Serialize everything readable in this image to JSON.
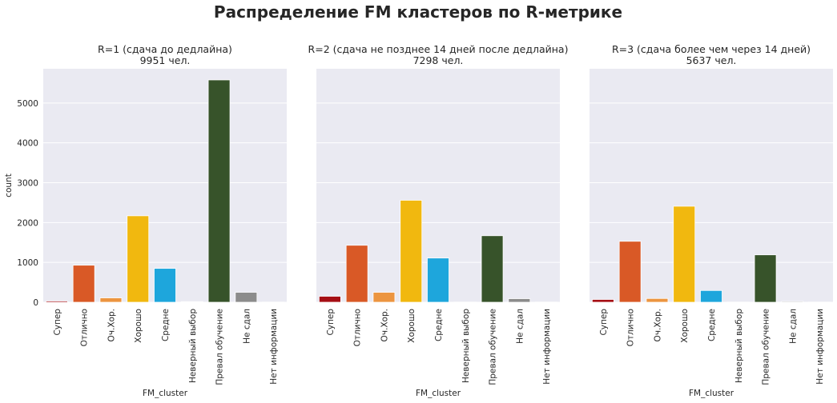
{
  "figure_title": "Распределение FM кластеров по R-метрике",
  "colors": {
    "plot_background": "#eaeaf2",
    "grid": "#ffffff",
    "Супер": "#a50f15",
    "Отлично": "#d95926",
    "Оч.Хор.": "#ec9540",
    "Хорошо": "#f1b80f",
    "Средне": "#1ea6dc",
    "Неверный выбор": "#a5a5a5",
    "Превал обучение": "#37532a",
    "Не сдал": "#8c8c8c",
    "Нет информации": "#b0b0b0"
  },
  "chart_data": [
    {
      "type": "bar",
      "title_line1": "R=1 (сдача до дедлайна)",
      "title_line2": "9951 чел.",
      "xlabel": "FM_cluster",
      "ylabel": "count",
      "categories": [
        "Супер",
        "Отлично",
        "Оч.Хор.",
        "Хорошо",
        "Средне",
        "Неверный выбор",
        "Превал обучение",
        "Не сдал",
        "Нет информации"
      ],
      "values": [
        30,
        930,
        110,
        2170,
        850,
        15,
        5580,
        250,
        5
      ],
      "ylim": [
        0,
        5860
      ],
      "yticks": [
        0,
        1000,
        2000,
        3000,
        4000,
        5000
      ],
      "grid": true
    },
    {
      "type": "bar",
      "title_line1": "R=2 (сдача не позднее 14 дней после дедлайна)",
      "title_line2": "7298 чел.",
      "xlabel": "FM_cluster",
      "ylabel": "",
      "categories": [
        "Супер",
        "Отлично",
        "Оч.Хор.",
        "Хорошо",
        "Средне",
        "Неверный выбор",
        "Превал обучение",
        "Не сдал",
        "Нет информации"
      ],
      "values": [
        150,
        1430,
        250,
        2560,
        1110,
        5,
        1670,
        90,
        5
      ],
      "ylim": [
        0,
        5860
      ],
      "yticks": [
        0,
        1000,
        2000,
        3000,
        4000,
        5000
      ],
      "grid": true
    },
    {
      "type": "bar",
      "title_line1": "R=3 (сдача более чем через 14 дней)",
      "title_line2": "5637 чел.",
      "xlabel": "FM_cluster",
      "ylabel": "",
      "categories": [
        "Супер",
        "Отлично",
        "Оч.Хор.",
        "Хорошо",
        "Средне",
        "Неверный выбор",
        "Превал обучение",
        "Не сдал",
        "Нет информации"
      ],
      "values": [
        70,
        1530,
        95,
        2410,
        295,
        5,
        1190,
        20,
        5
      ],
      "ylim": [
        0,
        5860
      ],
      "yticks": [
        0,
        1000,
        2000,
        3000,
        4000,
        5000
      ],
      "grid": true
    }
  ]
}
